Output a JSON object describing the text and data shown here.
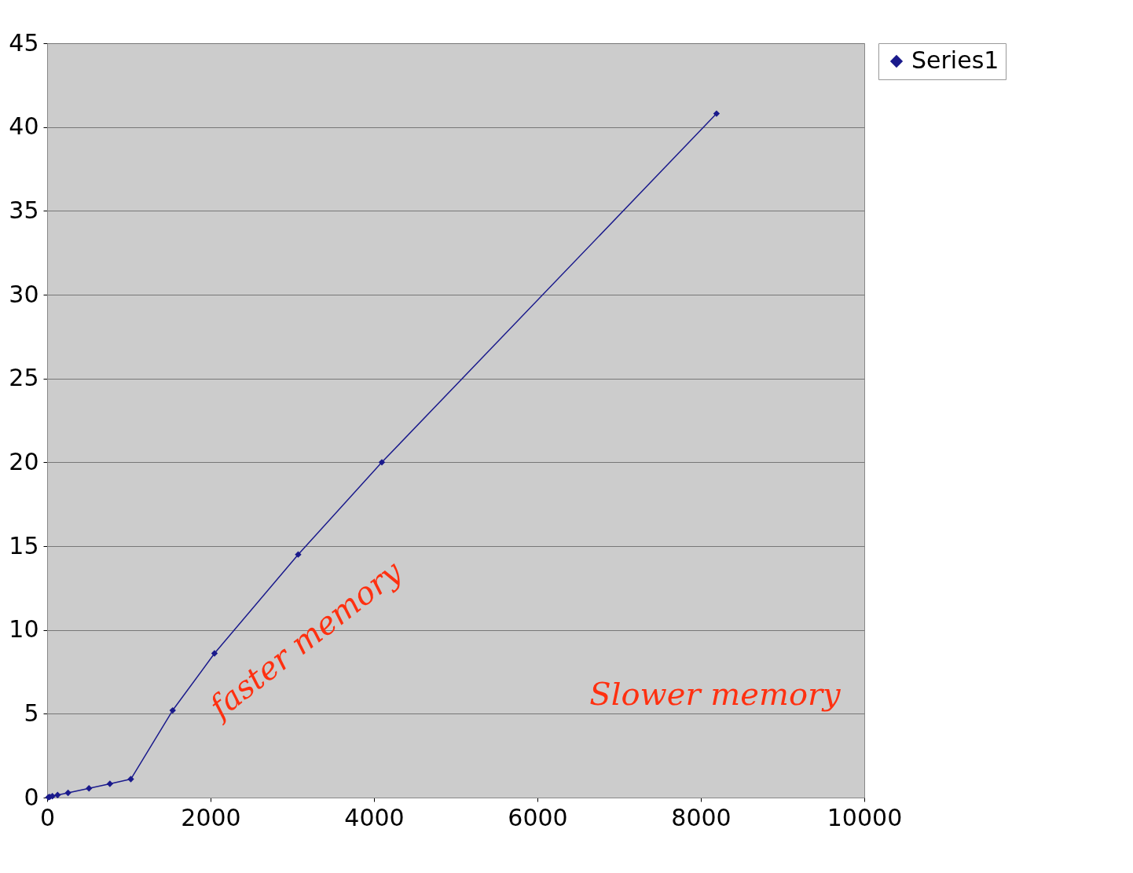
{
  "chart_data": {
    "type": "line",
    "x": [
      16,
      32,
      64,
      128,
      256,
      512,
      768,
      1024,
      1536,
      2048,
      3072,
      4096,
      8192
    ],
    "series": [
      {
        "name": "Series1",
        "color": "#1a1a8c",
        "values": [
          0.02,
          0.04,
          0.08,
          0.15,
          0.28,
          0.55,
          0.82,
          1.1,
          5.2,
          8.6,
          14.5,
          20.0,
          40.8
        ]
      }
    ],
    "xlim": [
      0,
      10000
    ],
    "xticks": [
      0,
      2000,
      4000,
      6000,
      8000,
      10000
    ],
    "ylim": [
      0,
      45
    ],
    "yticks": [
      0,
      5,
      10,
      15,
      20,
      25,
      30,
      35,
      40,
      45
    ],
    "grid": "y",
    "legend": "right",
    "marker": "diamond",
    "line_style": "solid",
    "annotations": [
      "faster memory",
      "Slower memory"
    ]
  }
}
